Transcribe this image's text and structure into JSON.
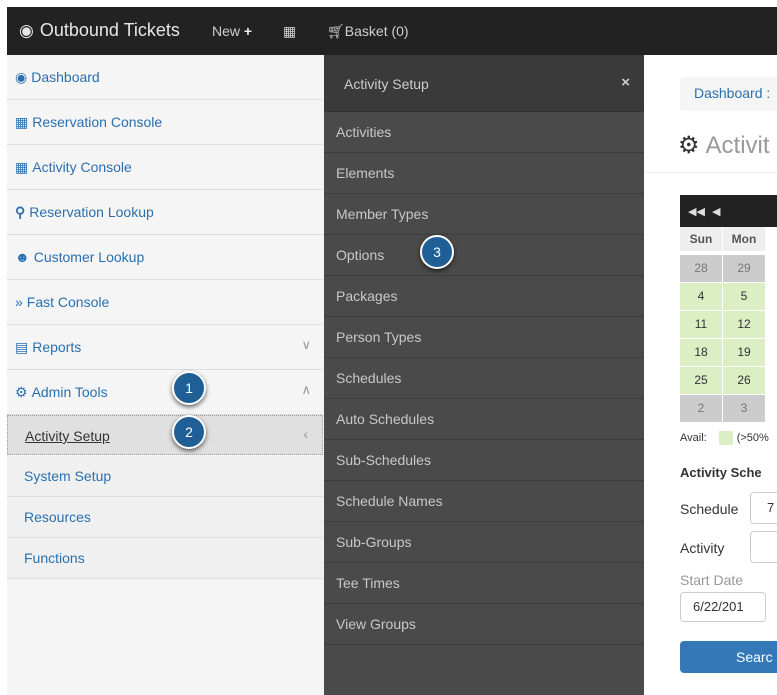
{
  "topbar": {
    "brand": "Outbound Tickets",
    "new_label": "New",
    "basket_label": "Basket (0)"
  },
  "sidebar": {
    "items": [
      {
        "label": "Dashboard",
        "icon": "dashboard-icon"
      },
      {
        "label": "Reservation Console",
        "icon": "calendar-icon"
      },
      {
        "label": "Activity Console",
        "icon": "calendar-icon"
      },
      {
        "label": "Reservation Lookup",
        "icon": "search-icon"
      },
      {
        "label": "Customer Lookup",
        "icon": "users-icon"
      },
      {
        "label": "Fast Console",
        "icon": "double-chevron-icon"
      },
      {
        "label": "Reports",
        "icon": "bar-chart-icon"
      },
      {
        "label": "Admin Tools",
        "icon": "gear-icon"
      }
    ],
    "admin_sub": [
      {
        "label": "Activity Setup"
      },
      {
        "label": "System Setup"
      },
      {
        "label": "Resources"
      },
      {
        "label": "Functions"
      }
    ]
  },
  "flyout": {
    "title": "Activity Setup",
    "close": "×",
    "items": [
      "Activities",
      "Elements",
      "Member Types",
      "Options",
      "Packages",
      "Person Types",
      "Schedules",
      "Auto Schedules",
      "Sub-Schedules",
      "Schedule Names",
      "Sub-Groups",
      "Tee Times",
      "View Groups"
    ]
  },
  "callouts": [
    "1",
    "2",
    "3"
  ],
  "main": {
    "breadcrumb": "Dashboard :",
    "title": "Activit",
    "calendar": {
      "dow": [
        "Sun",
        "Mon"
      ],
      "rows": [
        [
          "28",
          "29"
        ],
        [
          "4",
          "5"
        ],
        [
          "11",
          "12"
        ],
        [
          "18",
          "19"
        ],
        [
          "25",
          "26"
        ],
        [
          "2",
          "3"
        ]
      ]
    },
    "legend_avail": "Avail:",
    "legend_text": "(>50%",
    "section_title": "Activity Sche",
    "schedule_label": "Schedule",
    "schedule_value": "7",
    "activity_label": "Activity",
    "start_date_label": "Start Date",
    "start_date_value": "6/22/201",
    "search_label": "Searc"
  },
  "colors": {
    "topbar": "#222222",
    "link": "#2a6fb0",
    "flyout": "#4a4a4a",
    "callout": "#1f5f96",
    "avail_green": "#dbeec4"
  }
}
